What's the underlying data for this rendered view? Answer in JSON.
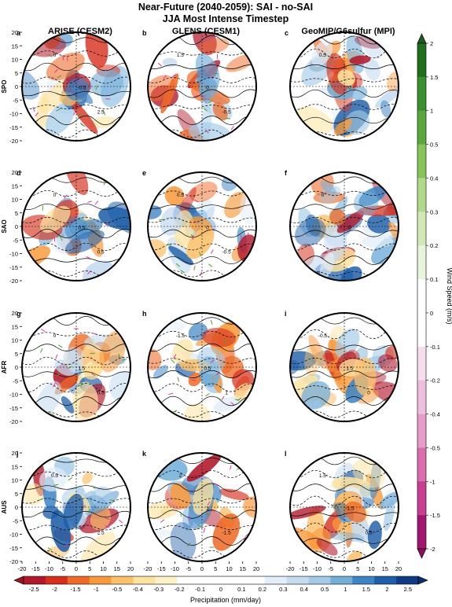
{
  "title": {
    "line1": "Near-Future (2040-2059): SAI - no-SAI",
    "line2": "JJA Most Intense Timestep"
  },
  "columns": [
    {
      "title": "ARISE (CESM2)"
    },
    {
      "title": "GLENS (CESM1)"
    },
    {
      "title": "GeoMIP/G6sulfur (MPI)"
    }
  ],
  "rows": [
    {
      "label": "SPO"
    },
    {
      "label": "SAO"
    },
    {
      "label": "AFR"
    },
    {
      "label": "AUS"
    }
  ],
  "panel_letters": [
    "a",
    "b",
    "c",
    "d",
    "e",
    "f",
    "g",
    "h",
    "i",
    "j",
    "k",
    "l"
  ],
  "contour_labels": {
    "0": [
      "0",
      "-0.5",
      "2.5"
    ],
    "1": [
      "1.5",
      "0",
      "-0.5"
    ],
    "2": [
      "0.5",
      "0",
      ""
    ],
    "3": [
      "0",
      "0.5",
      "0.5"
    ],
    "4": [
      "0.5",
      "0",
      "-0.5"
    ],
    "5": [
      "0",
      "0",
      ""
    ],
    "6": [
      "0",
      "1.5",
      "0.5"
    ],
    "7": [
      "-1.5",
      "0.5",
      "1"
    ],
    "8": [
      "-0.5",
      "1.5",
      "0"
    ],
    "9": [
      "0.5",
      "1",
      "2.5"
    ],
    "10": [
      "2",
      "1",
      "-1.5"
    ],
    "11": [
      "1.5",
      "-1.5",
      "0.5"
    ]
  },
  "chart_data": {
    "type": "heatmap",
    "panel_grid": {
      "rows": 4,
      "cols": 3
    },
    "xlim": [
      -20,
      20
    ],
    "ylim": [
      -20,
      20
    ],
    "x_ticks": [
      -20,
      -15,
      -10,
      -5,
      0,
      5,
      10,
      15,
      20
    ],
    "y_ticks": [
      20,
      15,
      10,
      5,
      0,
      -5,
      -10,
      -15,
      -20
    ],
    "fill_variable": "Precipitation (mm/day)",
    "contour_variable": "Wind Speed (m/s)",
    "precip_colorbar": {
      "label": "Precipitation (mm/day)",
      "tick_labels": [
        "-2.5",
        "-2",
        "-1.5",
        "-1",
        "-0.5",
        "-0.4",
        "-0.3",
        "-0.2",
        "-0.1",
        "0",
        "0.1",
        "0.2",
        "0.3",
        "0.4",
        "0.5",
        "1",
        "1.5",
        "2",
        "2.5"
      ],
      "colors": [
        "#b2182b",
        "#d6301d",
        "#ee6a26",
        "#f89a3c",
        "#fcc16a",
        "#fde3a0",
        "#fdf1c8",
        "#ffffff",
        "#ffffff",
        "#ffffff",
        "#ffffff",
        "#e2eef8",
        "#c6dcf0",
        "#a3cbe8",
        "#74afd9",
        "#3d84c4",
        "#1e5ea8",
        "#0f3b85"
      ]
    },
    "wind_colorbar": {
      "label": "Wind Speed (m/s)",
      "tick_labels": [
        "2",
        "1.5",
        "1",
        "0.5",
        "0.4",
        "0.3",
        "0.2",
        "0.1",
        "0",
        "-0.1",
        "-0.2",
        "-0.4",
        "-0.5",
        "-1",
        "-1.5",
        "-2"
      ],
      "colors": [
        "#1f6f1f",
        "#3a8f2e",
        "#5aa83d",
        "#86c459",
        "#b0d98a",
        "#cfe8b5",
        "#e8f4dc",
        "#ffffff",
        "#ffffff",
        "#f7dcec",
        "#eebfdc",
        "#e69ccb",
        "#d96db0",
        "#c93e93",
        "#a3166f"
      ]
    }
  }
}
